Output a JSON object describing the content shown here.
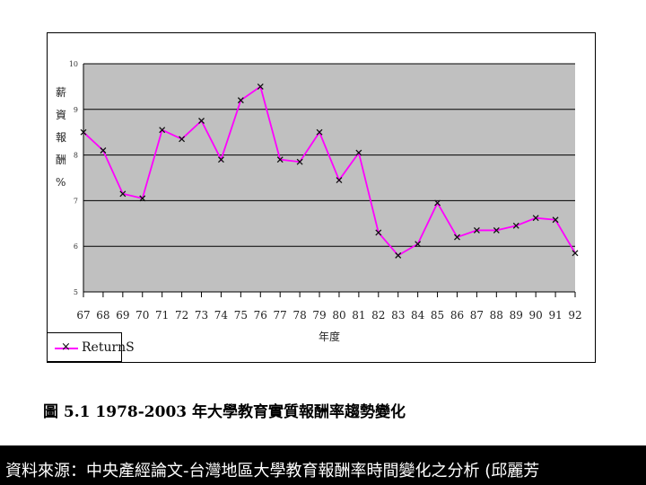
{
  "chart_data": {
    "type": "line",
    "categories": [
      "67",
      "68",
      "69",
      "70",
      "71",
      "72",
      "73",
      "74",
      "75",
      "76",
      "77",
      "78",
      "79",
      "80",
      "81",
      "82",
      "83",
      "84",
      "85",
      "86",
      "87",
      "88",
      "89",
      "90",
      "91",
      "92"
    ],
    "series": [
      {
        "name": "ReturnS",
        "values": [
          8.5,
          8.1,
          7.15,
          7.05,
          8.55,
          8.35,
          8.75,
          7.9,
          9.2,
          9.5,
          7.9,
          7.85,
          8.5,
          7.45,
          8.05,
          6.3,
          5.8,
          6.05,
          6.95,
          6.2,
          6.35,
          6.35,
          6.45,
          6.62,
          6.58,
          5.85
        ]
      }
    ],
    "ylim": [
      5,
      10
    ],
    "yticks": [
      "5",
      "6",
      "7",
      "8",
      "9",
      "10"
    ],
    "ylabel": "薪資報酬%",
    "xlabel": "年度",
    "grid": true,
    "legend_position": "bottom-left",
    "colors": {
      "line": "#ff00ff",
      "plot_bg": "#c0c0c0",
      "marker": "#111111"
    }
  },
  "caption": "圖 5.1 1978-2003 年大學教育實質報酬率趨勢變化",
  "footer": "資料來源：中央產經論文-台灣地區大學教育報酬率時間變化之分析 (邱麗芳"
}
